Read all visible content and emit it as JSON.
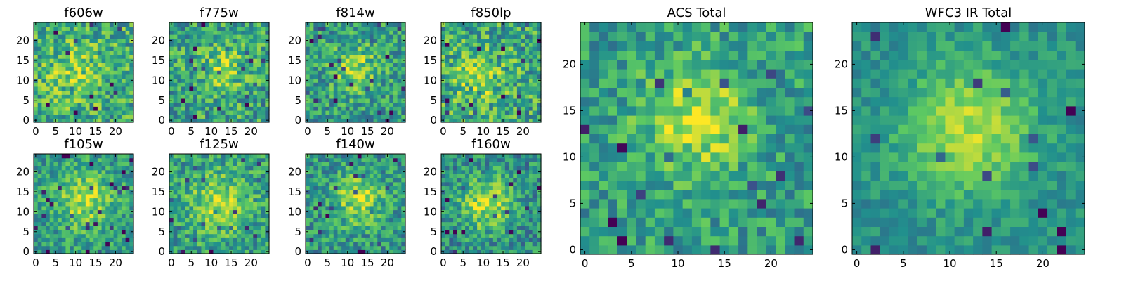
{
  "figure": {
    "colormap": "viridis",
    "colormap_stops": [
      "#440154",
      "#3b528b",
      "#21908d",
      "#5dc962",
      "#fde725"
    ],
    "frame_color": "#000000"
  },
  "chart_data": [
    {
      "type": "heatmap",
      "title": "f606w",
      "grid_size": 25,
      "xlim": [
        -0.5,
        24.5
      ],
      "ylim": [
        -0.5,
        24.5
      ],
      "xticks": [
        0,
        5,
        10,
        15,
        20
      ],
      "yticks": [
        0,
        5,
        10,
        15,
        20
      ],
      "peak": [
        10,
        12
      ],
      "peak_sigma": 5,
      "peak_amp": 0.18,
      "base": 0.62,
      "noise": 0.26,
      "seed": 11
    },
    {
      "type": "heatmap",
      "title": "f775w",
      "grid_size": 25,
      "xlim": [
        -0.5,
        24.5
      ],
      "ylim": [
        -0.5,
        24.5
      ],
      "xticks": [
        0,
        5,
        10,
        15,
        20
      ],
      "yticks": [
        0,
        5,
        10,
        15,
        20
      ],
      "peak": [
        13,
        13
      ],
      "peak_sigma": 4.5,
      "peak_amp": 0.22,
      "base": 0.58,
      "noise": 0.26,
      "seed": 23
    },
    {
      "type": "heatmap",
      "title": "f814w",
      "grid_size": 25,
      "xlim": [
        -0.5,
        24.5
      ],
      "ylim": [
        -0.5,
        24.5
      ],
      "xticks": [
        0,
        5,
        10,
        15,
        20
      ],
      "yticks": [
        0,
        5,
        10,
        15,
        20
      ],
      "peak": [
        12,
        13
      ],
      "peak_sigma": 4,
      "peak_amp": 0.3,
      "base": 0.55,
      "noise": 0.24,
      "seed": 37
    },
    {
      "type": "heatmap",
      "title": "f850lp",
      "grid_size": 25,
      "xlim": [
        -0.5,
        24.5
      ],
      "ylim": [
        -0.5,
        24.5
      ],
      "xticks": [
        0,
        5,
        10,
        15,
        20
      ],
      "yticks": [
        0,
        5,
        10,
        15,
        20
      ],
      "peak": [
        9,
        11
      ],
      "peak_sigma": 4.5,
      "peak_amp": 0.22,
      "base": 0.6,
      "noise": 0.27,
      "seed": 51
    },
    {
      "type": "heatmap",
      "title": "f105w",
      "grid_size": 25,
      "xlim": [
        -0.5,
        24.5
      ],
      "ylim": [
        -0.5,
        24.5
      ],
      "xticks": [
        0,
        5,
        10,
        15,
        20
      ],
      "yticks": [
        0,
        5,
        10,
        15,
        20
      ],
      "peak": [
        12,
        13
      ],
      "peak_sigma": 5,
      "peak_amp": 0.32,
      "base": 0.55,
      "noise": 0.2,
      "seed": 67
    },
    {
      "type": "heatmap",
      "title": "f125w",
      "grid_size": 25,
      "xlim": [
        -0.5,
        24.5
      ],
      "ylim": [
        -0.5,
        24.5
      ],
      "xticks": [
        0,
        5,
        10,
        15,
        20
      ],
      "yticks": [
        0,
        5,
        10,
        15,
        20
      ],
      "peak": [
        12,
        12
      ],
      "peak_sigma": 5,
      "peak_amp": 0.32,
      "base": 0.56,
      "noise": 0.22,
      "seed": 79
    },
    {
      "type": "heatmap",
      "title": "f140w",
      "grid_size": 25,
      "xlim": [
        -0.5,
        24.5
      ],
      "ylim": [
        -0.5,
        24.5
      ],
      "xticks": [
        0,
        5,
        10,
        15,
        20
      ],
      "yticks": [
        0,
        5,
        10,
        15,
        20
      ],
      "peak": [
        13,
        13
      ],
      "peak_sigma": 4.5,
      "peak_amp": 0.34,
      "base": 0.52,
      "noise": 0.22,
      "seed": 97
    },
    {
      "type": "heatmap",
      "title": "f160w",
      "grid_size": 25,
      "xlim": [
        -0.5,
        24.5
      ],
      "ylim": [
        -0.5,
        24.5
      ],
      "xticks": [
        0,
        5,
        10,
        15,
        20
      ],
      "yticks": [
        0,
        5,
        10,
        15,
        20
      ],
      "peak": [
        11,
        12
      ],
      "peak_sigma": 4.5,
      "peak_amp": 0.4,
      "base": 0.5,
      "noise": 0.22,
      "seed": 103
    },
    {
      "type": "heatmap",
      "title": "ACS Total",
      "grid_size": 25,
      "xlim": [
        -0.5,
        24.5
      ],
      "ylim": [
        -0.5,
        24.5
      ],
      "xticks": [
        0,
        5,
        10,
        15,
        20
      ],
      "yticks": [
        0,
        5,
        10,
        15,
        20
      ],
      "peak": [
        12,
        14
      ],
      "peak_sigma": 4,
      "peak_amp": 0.35,
      "base": 0.56,
      "noise": 0.2,
      "seed": 131
    },
    {
      "type": "heatmap",
      "title": "WFC3 IR Total",
      "grid_size": 25,
      "xlim": [
        -0.5,
        24.5
      ],
      "ylim": [
        -0.5,
        24.5
      ],
      "xticks": [
        0,
        5,
        10,
        15,
        20
      ],
      "yticks": [
        0,
        5,
        10,
        15,
        20
      ],
      "peak": [
        12,
        13
      ],
      "peak_sigma": 5,
      "peak_amp": 0.38,
      "base": 0.5,
      "noise": 0.12,
      "seed": 149
    }
  ]
}
